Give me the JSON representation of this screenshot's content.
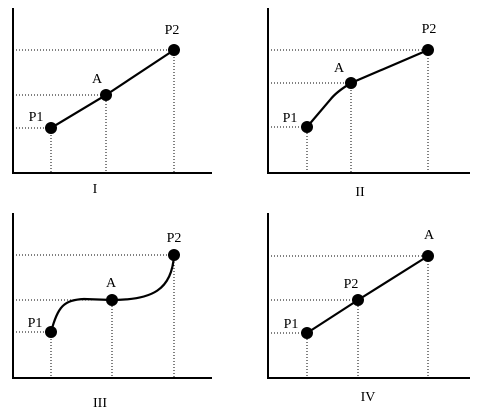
{
  "panels": [
    {
      "caption": "I",
      "points": [
        "P1",
        "A",
        "P2"
      ]
    },
    {
      "caption": "II",
      "points": [
        "P1",
        "A",
        "P2"
      ]
    },
    {
      "caption": "III",
      "points": [
        "P1",
        "A",
        "P2"
      ]
    },
    {
      "caption": "IV",
      "points": [
        "P1",
        "P2",
        "A"
      ]
    }
  ]
}
